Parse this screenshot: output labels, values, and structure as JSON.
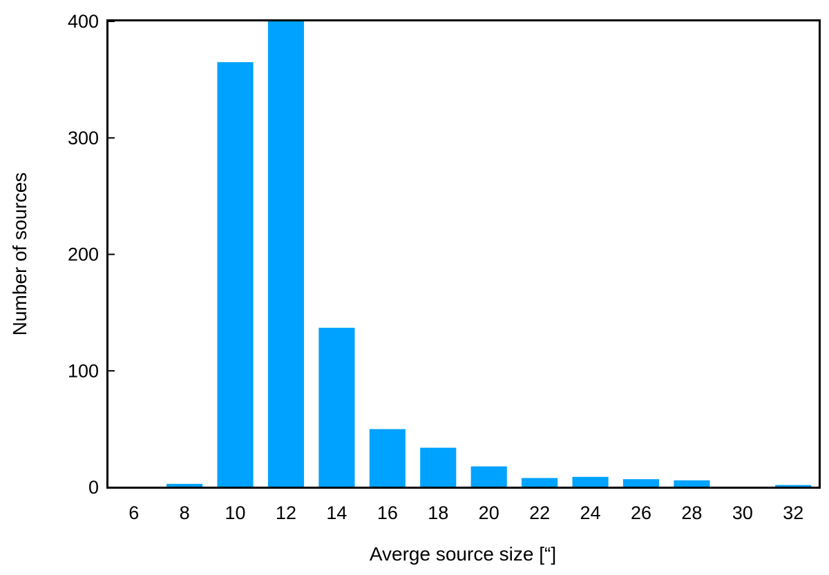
{
  "chart_data": {
    "type": "bar",
    "categories": [
      "6",
      "8",
      "10",
      "12",
      "14",
      "16",
      "18",
      "20",
      "22",
      "24",
      "26",
      "28",
      "30",
      "32"
    ],
    "values": [
      0,
      3,
      365,
      400,
      137,
      50,
      34,
      18,
      8,
      9,
      7,
      6,
      0,
      2
    ],
    "xlabel": "Averge source size [“]",
    "ylabel": "Number of sources",
    "ylim": [
      0,
      400
    ],
    "yticks": [
      0,
      100,
      200,
      300,
      400
    ],
    "bar_color": "#00A2FF",
    "grid": false,
    "legend": "none"
  }
}
